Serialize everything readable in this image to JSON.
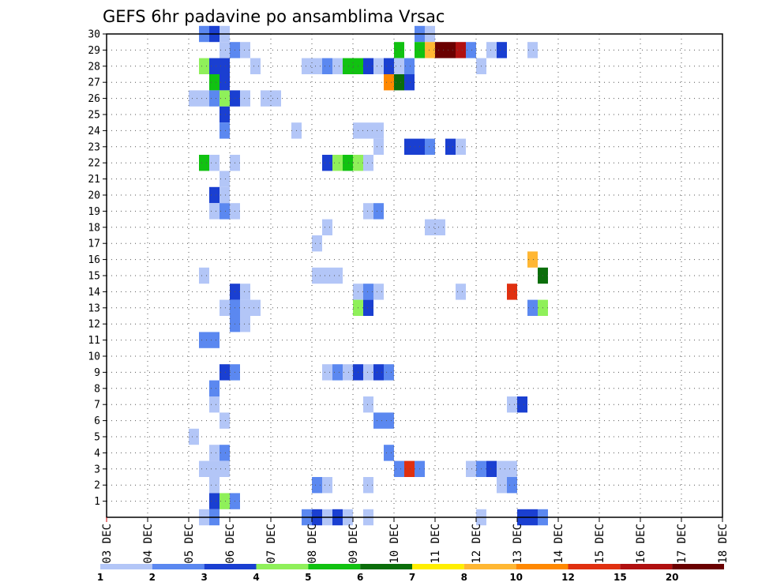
{
  "chart_data": {
    "type": "heatmap",
    "title": "GEFS 6hr padavine po ansamblima Vrsac",
    "xlabel": "",
    "ylabel": "",
    "x_tick_labels": [
      "03 DEC",
      "04 DEC",
      "05 DEC",
      "06 DEC",
      "07 DEC",
      "08 DEC",
      "09 DEC",
      "10 DEC",
      "11 DEC",
      "12 DEC",
      "13 DEC",
      "14 DEC",
      "15 DEC",
      "16 DEC",
      "17 DEC",
      "18 DEC"
    ],
    "x_range_days": [
      0,
      15
    ],
    "step_hours": 6,
    "y_tick_labels": [
      "1",
      "2",
      "3",
      "4",
      "5",
      "6",
      "7",
      "8",
      "9",
      "10",
      "11",
      "12",
      "13",
      "14",
      "15",
      "16",
      "17",
      "18",
      "19",
      "20",
      "21",
      "22",
      "23",
      "24",
      "25",
      "26",
      "27",
      "28",
      "29",
      "30"
    ],
    "y_range": [
      0,
      30
    ],
    "grid": true,
    "legend_position": "bottom",
    "colorbar": {
      "levels": [
        "1",
        "2",
        "3",
        "4",
        "5",
        "6",
        "7",
        "8",
        "10",
        "12",
        "15",
        "20"
      ],
      "colors": [
        "#b3c6f7",
        "#5b88f0",
        "#1a3fd1",
        "#8ff05a",
        "#11c211",
        "#0b6e0b",
        "#ffee00",
        "#ffb733",
        "#ff8800",
        "#e03010",
        "#b01010",
        "#6a0000"
      ]
    },
    "units_note": "each cell = [member, start step (6h from 03 DEC 00Z), end step, value mm]",
    "cells": [
      [
        30,
        9,
        9,
        2.5
      ],
      [
        30,
        10,
        10,
        3.5
      ],
      [
        30,
        11,
        11,
        1.5
      ],
      [
        30,
        30,
        30,
        2.5
      ],
      [
        30,
        31,
        31,
        1.5
      ],
      [
        29,
        11,
        11,
        1.5
      ],
      [
        29,
        12,
        12,
        2.5
      ],
      [
        29,
        13,
        13,
        1.5
      ],
      [
        29,
        28,
        28,
        5.5
      ],
      [
        29,
        30,
        30,
        5.5
      ],
      [
        29,
        31,
        31,
        9
      ],
      [
        29,
        32,
        33,
        25
      ],
      [
        29,
        34,
        34,
        18
      ],
      [
        29,
        35,
        35,
        2.5
      ],
      [
        29,
        37,
        37,
        1.5
      ],
      [
        29,
        38,
        38,
        3.5
      ],
      [
        29,
        41,
        41,
        1.5
      ],
      [
        28,
        9,
        9,
        4.5
      ],
      [
        28,
        10,
        11,
        3.5
      ],
      [
        28,
        14,
        14,
        1.5
      ],
      [
        28,
        19,
        20,
        1.5
      ],
      [
        28,
        21,
        21,
        2.5
      ],
      [
        28,
        22,
        22,
        1.5
      ],
      [
        28,
        23,
        24,
        5.5
      ],
      [
        28,
        25,
        25,
        3.5
      ],
      [
        28,
        26,
        26,
        1.5
      ],
      [
        28,
        27,
        27,
        3.5
      ],
      [
        28,
        28,
        28,
        1.5
      ],
      [
        28,
        29,
        29,
        2.5
      ],
      [
        28,
        36,
        36,
        1.5
      ],
      [
        27,
        10,
        10,
        5.5
      ],
      [
        27,
        11,
        11,
        3.5
      ],
      [
        27,
        27,
        27,
        11
      ],
      [
        27,
        28,
        28,
        6.5
      ],
      [
        27,
        29,
        29,
        3.5
      ],
      [
        26,
        8,
        9,
        1.5
      ],
      [
        26,
        10,
        10,
        2.5
      ],
      [
        26,
        11,
        11,
        4.5
      ],
      [
        26,
        12,
        12,
        3.5
      ],
      [
        26,
        13,
        13,
        1.5
      ],
      [
        26,
        15,
        16,
        1.5
      ],
      [
        25,
        11,
        11,
        3.5
      ],
      [
        24,
        11,
        11,
        2.5
      ],
      [
        24,
        18,
        18,
        1.5
      ],
      [
        24,
        24,
        26,
        1.5
      ],
      [
        23,
        26,
        26,
        1.5
      ],
      [
        23,
        29,
        30,
        3.5
      ],
      [
        23,
        31,
        31,
        2.5
      ],
      [
        23,
        33,
        33,
        3.5
      ],
      [
        23,
        34,
        34,
        1.5
      ],
      [
        22,
        9,
        9,
        5.5
      ],
      [
        22,
        10,
        10,
        1.5
      ],
      [
        22,
        12,
        12,
        1.5
      ],
      [
        22,
        21,
        21,
        3.5
      ],
      [
        22,
        22,
        22,
        4.5
      ],
      [
        22,
        23,
        23,
        5.5
      ],
      [
        22,
        24,
        24,
        4.5
      ],
      [
        22,
        25,
        25,
        1.5
      ],
      [
        21,
        11,
        11,
        1.5
      ],
      [
        20,
        10,
        10,
        3.5
      ],
      [
        20,
        11,
        11,
        1.5
      ],
      [
        19,
        10,
        10,
        1.5
      ],
      [
        19,
        11,
        11,
        2.5
      ],
      [
        19,
        12,
        12,
        1.5
      ],
      [
        19,
        25,
        25,
        1.5
      ],
      [
        19,
        26,
        26,
        2.5
      ],
      [
        18,
        31,
        32,
        1.5
      ],
      [
        18,
        21,
        21,
        1.5
      ],
      [
        17,
        20,
        20,
        1.5
      ],
      [
        16,
        41,
        41,
        9
      ],
      [
        15,
        9,
        9,
        1.5
      ],
      [
        15,
        20,
        20,
        1.5
      ],
      [
        15,
        22,
        22,
        1.5
      ],
      [
        15,
        21,
        21,
        1.5
      ],
      [
        15,
        42,
        42,
        6.5
      ],
      [
        14,
        12,
        12,
        3.5
      ],
      [
        14,
        13,
        13,
        1.5
      ],
      [
        14,
        24,
        24,
        1.5
      ],
      [
        14,
        25,
        25,
        2.5
      ],
      [
        14,
        26,
        26,
        1.5
      ],
      [
        14,
        34,
        34,
        1.5
      ],
      [
        14,
        39,
        39,
        13
      ],
      [
        13,
        11,
        11,
        1.5
      ],
      [
        13,
        12,
        12,
        2.5
      ],
      [
        13,
        13,
        13,
        1.5
      ],
      [
        13,
        14,
        14,
        1.5
      ],
      [
        13,
        24,
        24,
        4.5
      ],
      [
        13,
        25,
        25,
        3.5
      ],
      [
        13,
        41,
        41,
        2.5
      ],
      [
        13,
        42,
        42,
        4.5
      ],
      [
        12,
        12,
        12,
        2.5
      ],
      [
        12,
        13,
        13,
        1.5
      ],
      [
        11,
        9,
        10,
        2.5
      ],
      [
        9,
        11,
        11,
        3.5
      ],
      [
        9,
        12,
        12,
        2.5
      ],
      [
        9,
        21,
        21,
        1.5
      ],
      [
        9,
        22,
        22,
        2.5
      ],
      [
        9,
        23,
        23,
        1.5
      ],
      [
        9,
        24,
        24,
        3.5
      ],
      [
        9,
        25,
        25,
        1.5
      ],
      [
        9,
        26,
        26,
        3.5
      ],
      [
        9,
        27,
        27,
        2.5
      ],
      [
        8,
        10,
        10,
        2.5
      ],
      [
        7,
        10,
        10,
        1.5
      ],
      [
        7,
        25,
        25,
        1.5
      ],
      [
        7,
        39,
        39,
        1.5
      ],
      [
        7,
        40,
        40,
        3.5
      ],
      [
        6,
        11,
        11,
        1.5
      ],
      [
        6,
        26,
        27,
        2.5
      ],
      [
        5,
        8,
        8,
        1.5
      ],
      [
        4,
        10,
        10,
        1.5
      ],
      [
        4,
        11,
        11,
        2.5
      ],
      [
        4,
        27,
        27,
        2.5
      ],
      [
        3,
        9,
        10,
        1.5
      ],
      [
        3,
        11,
        11,
        1.5
      ],
      [
        3,
        28,
        28,
        2.5
      ],
      [
        3,
        29,
        29,
        13
      ],
      [
        3,
        30,
        30,
        2.5
      ],
      [
        3,
        35,
        35,
        1.5
      ],
      [
        3,
        36,
        36,
        2.5
      ],
      [
        3,
        37,
        37,
        3.5
      ],
      [
        3,
        38,
        39,
        1.5
      ],
      [
        2,
        10,
        10,
        1.5
      ],
      [
        2,
        20,
        20,
        2.5
      ],
      [
        2,
        21,
        21,
        1.5
      ],
      [
        2,
        25,
        25,
        1.5
      ],
      [
        2,
        38,
        38,
        1.5
      ],
      [
        2,
        39,
        39,
        2.5
      ],
      [
        1,
        10,
        10,
        3.5
      ],
      [
        1,
        11,
        11,
        4.5
      ],
      [
        1,
        12,
        12,
        2.5
      ],
      [
        0,
        9,
        9,
        1.5
      ],
      [
        0,
        10,
        10,
        2.5
      ],
      [
        0,
        19,
        19,
        2.5
      ],
      [
        0,
        20,
        20,
        3.5
      ],
      [
        0,
        21,
        21,
        1.5
      ],
      [
        0,
        22,
        22,
        3.5
      ],
      [
        0,
        23,
        23,
        1.5
      ],
      [
        0,
        25,
        25,
        1.5
      ],
      [
        0,
        36,
        36,
        1.5
      ],
      [
        0,
        40,
        41,
        3.5
      ],
      [
        0,
        42,
        42,
        2.5
      ]
    ]
  }
}
